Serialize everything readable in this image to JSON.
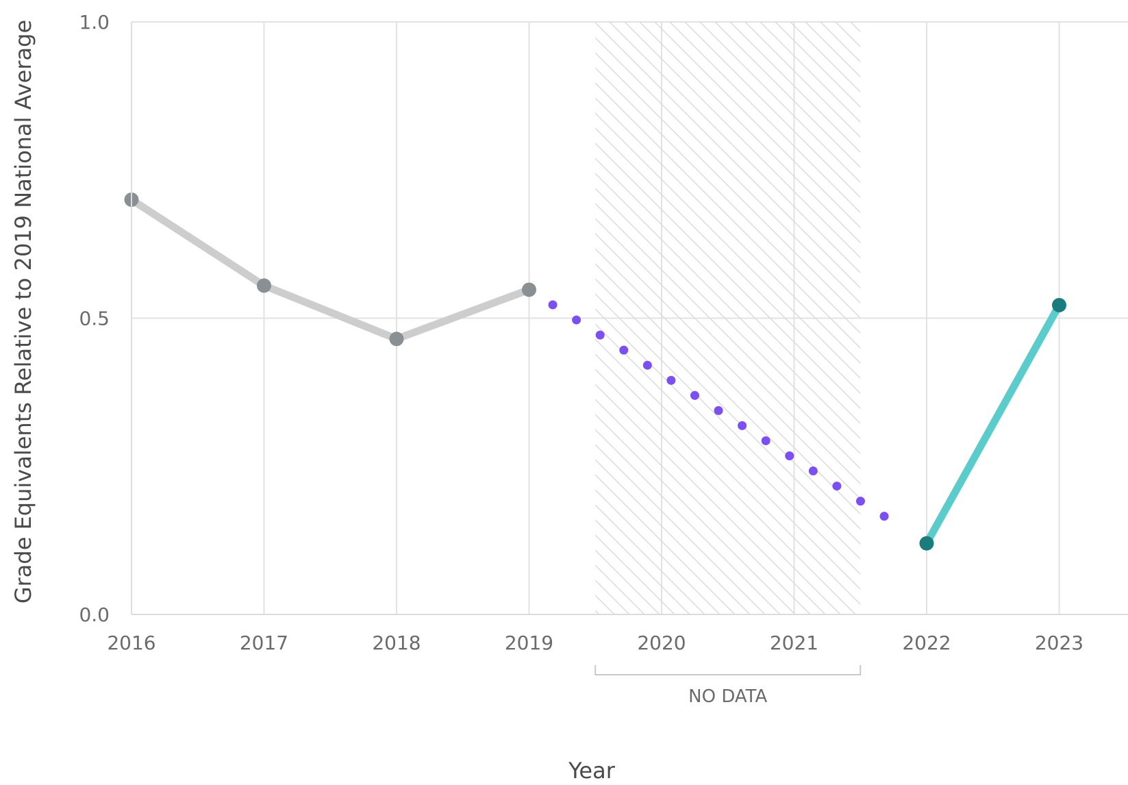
{
  "chart_data": {
    "type": "line",
    "xlabel": "Year",
    "ylabel": "Grade Equivalents Relative to 2019 National Average",
    "xlim": [
      2016,
      2024
    ],
    "ylim": [
      0.0,
      1.0
    ],
    "x_ticks": [
      2016,
      2017,
      2018,
      2019,
      2020,
      2021,
      2022,
      2023
    ],
    "x_tick_labels": [
      "2016",
      "2017",
      "2018",
      "2019",
      "2020",
      "2021",
      "2022",
      "2023"
    ],
    "y_ticks": [
      0.0,
      0.5,
      1.0
    ],
    "y_tick_labels": [
      "0.0",
      "0.5",
      "1.0"
    ],
    "grid": true,
    "series": [
      {
        "style": "solid",
        "color": "#cdcdcd",
        "marker_color": "#8a8f94",
        "x": [
          2016,
          2017,
          2018,
          2019
        ],
        "y": [
          0.7,
          0.555,
          0.465,
          0.548
        ]
      },
      {
        "style": "dotted",
        "color": "#7b4ff0",
        "x": [
          2019,
          2022
        ],
        "y": [
          0.548,
          0.12
        ]
      },
      {
        "style": "solid",
        "color": "#5bcbcb",
        "marker_color": "#1a7c7c",
        "x": [
          2022,
          2023
        ],
        "y": [
          0.12,
          0.522
        ]
      }
    ],
    "annotations": [
      {
        "type": "hatched_region",
        "x_start": 2019.5,
        "x_end": 2021.5,
        "label": "NO DATA"
      }
    ]
  }
}
